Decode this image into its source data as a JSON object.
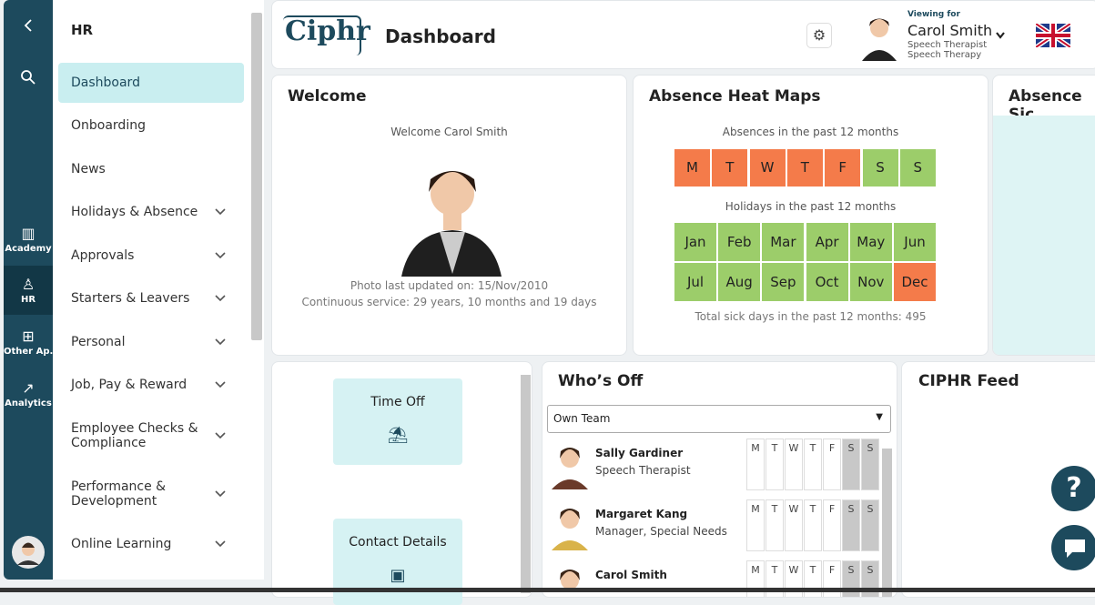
{
  "rail": {
    "items": [
      "Academy",
      "HR",
      "Other Ap...",
      "Analytics"
    ]
  },
  "sidebar": {
    "title": "HR",
    "items": [
      {
        "label": "Dashboard",
        "expandable": false,
        "selected": true
      },
      {
        "label": "Onboarding",
        "expandable": false
      },
      {
        "label": "News",
        "expandable": false
      },
      {
        "label": "Holidays & Absence",
        "expandable": true
      },
      {
        "label": "Approvals",
        "expandable": true
      },
      {
        "label": "Starters & Leavers",
        "expandable": true
      },
      {
        "label": "Personal",
        "expandable": true
      },
      {
        "label": "Job, Pay & Reward",
        "expandable": true
      },
      {
        "label": "Employee Checks & Compliance",
        "expandable": true
      },
      {
        "label": "Performance & Development",
        "expandable": true
      },
      {
        "label": "Online Learning",
        "expandable": true
      }
    ]
  },
  "header": {
    "logo": "Ciphr",
    "title": "Dashboard",
    "viewing_for": "Viewing for",
    "name": "Carol Smith",
    "role": "Speech Therapist",
    "department": "Speech Therapy"
  },
  "welcome": {
    "title": "Welcome",
    "greeting": "Welcome Carol Smith",
    "photo_updated": "Photo last updated on: 15/Nov/2010",
    "service": "Continuous service: 29 years, 10 months and 19 days"
  },
  "heat_maps": {
    "title": "Absence Heat Maps",
    "absences_caption": "Absences in the past 12 months",
    "days": [
      {
        "label": "M",
        "color": "#f47b4a"
      },
      {
        "label": "T",
        "color": "#f47b4a"
      },
      {
        "label": "W",
        "color": "#f47b4a"
      },
      {
        "label": "T",
        "color": "#f47b4a"
      },
      {
        "label": "F",
        "color": "#f47b4a"
      },
      {
        "label": "S",
        "color": "#9ccd6a"
      },
      {
        "label": "S",
        "color": "#9ccd6a"
      }
    ],
    "holidays_caption": "Holidays in the past 12 months",
    "months": [
      {
        "label": "Jan",
        "color": "#9ccd6a"
      },
      {
        "label": "Feb",
        "color": "#9ccd6a"
      },
      {
        "label": "Mar",
        "color": "#9ccd6a"
      },
      {
        "label": "Apr",
        "color": "#9ccd6a"
      },
      {
        "label": "May",
        "color": "#9ccd6a"
      },
      {
        "label": "Jun",
        "color": "#9ccd6a"
      },
      {
        "label": "Jul",
        "color": "#9ccd6a"
      },
      {
        "label": "Aug",
        "color": "#9ccd6a"
      },
      {
        "label": "Sep",
        "color": "#9ccd6a"
      },
      {
        "label": "Oct",
        "color": "#9ccd6a"
      },
      {
        "label": "Nov",
        "color": "#9ccd6a"
      },
      {
        "label": "Dec",
        "color": "#f47b4a"
      }
    ],
    "total": "Total sick days in the past 12 months: 495"
  },
  "absence_sick": {
    "title": "Absence Sic"
  },
  "quick_links": [
    "Time Off",
    "Contact Details"
  ],
  "whos_off": {
    "title": "Who’s Off",
    "filter": "Own Team",
    "days": [
      "M",
      "T",
      "W",
      "T",
      "F",
      "S",
      "S"
    ],
    "people": [
      {
        "name": "Sally Gardiner",
        "role": "Speech Therapist"
      },
      {
        "name": "Margaret Kang",
        "role": "Manager, Special Needs"
      },
      {
        "name": "Carol Smith"
      }
    ]
  },
  "feed": {
    "title": "CIPHR Feed"
  }
}
